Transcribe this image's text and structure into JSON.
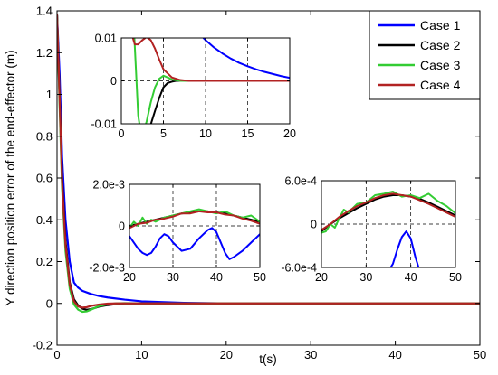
{
  "chart_data": [
    {
      "type": "line",
      "panel": "main",
      "title": "",
      "xlabel": "t(s)",
      "ylabel": "Y direction position error of the end-effector (m)",
      "xlim": [
        0,
        50
      ],
      "ylim": [
        -0.2,
        1.4
      ],
      "xticks": [
        0,
        10,
        20,
        30,
        40,
        50
      ],
      "xtick_labels": [
        "0",
        "10",
        "20",
        "30",
        "40",
        "50"
      ],
      "yticks": [
        -0.2,
        0,
        0.2,
        0.4,
        0.6,
        0.8,
        1.0,
        1.2,
        1.4
      ],
      "ytick_labels": [
        "-0.2",
        "0",
        "0.2",
        "0.4",
        "0.6",
        "0.8",
        "1",
        "1.2",
        "1.4"
      ],
      "grid": false,
      "legend": "top-right",
      "series": [
        {
          "name": "Case 1",
          "color": "#0000ff",
          "x": [
            0,
            0.3,
            0.6,
            1.0,
            1.5,
            2.0,
            2.5,
            3,
            4,
            5,
            6,
            8,
            10,
            15,
            20,
            30,
            40,
            50
          ],
          "y": [
            1.38,
            1.1,
            0.7,
            0.4,
            0.2,
            0.1,
            0.075,
            0.06,
            0.045,
            0.035,
            0.028,
            0.018,
            0.01,
            0.003,
            0.0,
            -0.001,
            0.0,
            0.0
          ]
        },
        {
          "name": "Case 2",
          "color": "#000000",
          "x": [
            0,
            0.3,
            0.6,
            1.0,
            1.5,
            2.0,
            2.5,
            3,
            3.5,
            4,
            5,
            6,
            7,
            8,
            10,
            20,
            50
          ],
          "y": [
            1.38,
            1.0,
            0.6,
            0.3,
            0.1,
            0.02,
            -0.01,
            -0.025,
            -0.03,
            -0.028,
            -0.015,
            -0.008,
            -0.003,
            0.0,
            0.0,
            0.0,
            0.0
          ]
        },
        {
          "name": "Case 3",
          "color": "#33cc33",
          "x": [
            0,
            0.3,
            0.6,
            1.0,
            1.5,
            2.0,
            2.5,
            3,
            3.5,
            4,
            5,
            6,
            7,
            8,
            10,
            20,
            50
          ],
          "y": [
            1.38,
            0.95,
            0.55,
            0.25,
            0.07,
            -0.005,
            -0.03,
            -0.04,
            -0.038,
            -0.03,
            -0.012,
            -0.004,
            0.0,
            0.001,
            0.0,
            0.0,
            0.0
          ]
        },
        {
          "name": "Case 4",
          "color": "#b22222",
          "x": [
            0,
            0.3,
            0.6,
            1.0,
            1.5,
            2.0,
            2.5,
            3,
            3.5,
            4,
            5,
            6,
            7,
            8,
            10,
            20,
            50
          ],
          "y": [
            1.38,
            0.98,
            0.58,
            0.28,
            0.09,
            0.01,
            -0.015,
            -0.02,
            -0.018,
            -0.012,
            -0.005,
            -0.001,
            0.0,
            0.0,
            0.0,
            0.0,
            0.0
          ]
        }
      ]
    },
    {
      "type": "line",
      "panel": "inset-top-left",
      "xlim": [
        0,
        20
      ],
      "ylim": [
        -0.01,
        0.01
      ],
      "xticks": [
        0,
        5,
        10,
        15,
        20
      ],
      "xtick_labels": [
        "0",
        "5",
        "10",
        "15",
        "20"
      ],
      "yticks": [
        -0.01,
        0,
        0.01
      ],
      "ytick_labels": [
        "-0.01",
        "0",
        "0.01"
      ],
      "grid": true,
      "series": [
        {
          "name": "Case 1",
          "color": "#0000ff",
          "x": [
            9,
            10,
            11,
            12,
            13,
            14,
            15,
            16,
            17,
            18,
            19,
            20
          ],
          "y": [
            0.0115,
            0.0095,
            0.0078,
            0.0064,
            0.0052,
            0.0042,
            0.0034,
            0.0027,
            0.0021,
            0.0016,
            0.0011,
            0.0007
          ]
        },
        {
          "name": "Case 2",
          "color": "#000000",
          "x": [
            3.0,
            3.3,
            3.6,
            4.0,
            4.5,
            5.0,
            5.5,
            6.0,
            6.5,
            7.0,
            8,
            10,
            15,
            20
          ],
          "y": [
            -0.012,
            -0.0115,
            -0.0095,
            -0.007,
            -0.004,
            -0.0015,
            -0.0005,
            -0.0002,
            0.0,
            0.0,
            0.0,
            0.0,
            0.0,
            0.0
          ]
        },
        {
          "name": "Case 3",
          "color": "#33cc33",
          "x": [
            1.5,
            1.8,
            2.0,
            2.3,
            2.6,
            3.0,
            3.5,
            4.0,
            4.5,
            5.0,
            5.5,
            6.0,
            7,
            8,
            10,
            15,
            20
          ],
          "y": [
            0.012,
            0.0,
            -0.008,
            -0.012,
            -0.012,
            -0.0095,
            -0.005,
            -0.0015,
            0.0005,
            0.0012,
            0.0008,
            0.0003,
            0.0,
            0.0,
            0.0,
            0.0,
            0.0
          ]
        },
        {
          "name": "Case 4",
          "color": "#b22222",
          "x": [
            1.0,
            1.3,
            1.6,
            2.0,
            2.5,
            3.0,
            3.5,
            4.0,
            4.5,
            5.0,
            6.0,
            7.0,
            8,
            10,
            15,
            20
          ],
          "y": [
            0.0115,
            0.0105,
            0.0085,
            0.0085,
            0.0095,
            0.0102,
            0.0095,
            0.0075,
            0.005,
            0.0027,
            0.0008,
            0.0002,
            0.0,
            0.0,
            0.0,
            0.0
          ]
        }
      ]
    },
    {
      "type": "line",
      "panel": "inset-middle",
      "xlim": [
        20,
        50
      ],
      "ylim": [
        -0.002,
        0.002
      ],
      "xticks": [
        20,
        30,
        40,
        50
      ],
      "xtick_labels": [
        "20",
        "30",
        "40",
        "50"
      ],
      "yticks": [
        -0.002,
        0,
        0.002
      ],
      "ytick_labels": [
        "-2.0e-3",
        "0",
        "2.0e-3"
      ],
      "grid": true,
      "series": [
        {
          "name": "Case 1",
          "color": "#0000ff",
          "x": [
            20,
            21,
            22,
            23,
            24,
            25,
            26,
            27,
            28,
            29,
            30,
            32,
            34,
            36,
            38,
            39,
            40,
            41,
            42,
            43,
            44,
            46,
            48,
            50
          ],
          "y": [
            -0.0005,
            -0.0008,
            -0.0011,
            -0.0013,
            -0.0014,
            -0.0013,
            -0.001,
            -0.0006,
            -0.0004,
            -0.0005,
            -0.0008,
            -0.0012,
            -0.0011,
            -0.0006,
            -0.0002,
            -0.0001,
            -0.0003,
            -0.0008,
            -0.0013,
            -0.0016,
            -0.0015,
            -0.0012,
            -0.0008,
            -0.0004
          ]
        },
        {
          "name": "Case 2",
          "color": "#000000",
          "x": [
            20,
            22,
            24,
            26,
            28,
            30,
            32,
            34,
            36,
            38,
            40,
            42,
            44,
            46,
            48,
            50
          ],
          "y": [
            0.0,
            0.0001,
            0.0002,
            0.0003,
            0.0004,
            0.0005,
            0.0006,
            0.00065,
            0.0007,
            0.0007,
            0.00065,
            0.0006,
            0.0005,
            0.0004,
            0.0003,
            0.0002
          ]
        },
        {
          "name": "Case 3",
          "color": "#33cc33",
          "x": [
            20,
            21,
            22,
            23,
            24,
            25,
            26,
            28,
            30,
            32,
            34,
            36,
            38,
            40,
            42,
            44,
            46,
            48,
            50
          ],
          "y": [
            -0.0001,
            0.0002,
            0.0,
            0.0004,
            0.0001,
            0.0003,
            0.0002,
            0.0004,
            0.0005,
            0.0006,
            0.0007,
            0.0008,
            0.0007,
            0.0006,
            0.0007,
            0.0005,
            0.0004,
            0.0005,
            0.0002
          ]
        },
        {
          "name": "Case 4",
          "color": "#b22222",
          "x": [
            20,
            22,
            24,
            26,
            28,
            30,
            32,
            34,
            36,
            38,
            40,
            42,
            44,
            46,
            48,
            50
          ],
          "y": [
            -0.0001,
            0.0001,
            0.00015,
            0.0003,
            0.00035,
            0.00045,
            0.0006,
            0.0006,
            0.0007,
            0.00065,
            0.00065,
            0.00055,
            0.0005,
            0.00035,
            0.00025,
            0.0001
          ]
        }
      ]
    },
    {
      "type": "line",
      "panel": "inset-right",
      "xlim": [
        20,
        50
      ],
      "ylim": [
        -0.0006,
        0.0006
      ],
      "xticks": [
        20,
        30,
        40,
        50
      ],
      "xtick_labels": [
        "20",
        "30",
        "40",
        "50"
      ],
      "yticks": [
        -0.0006,
        0,
        0.0006
      ],
      "ytick_labels": [
        "-6.0e-4",
        "0",
        "6.0e-4"
      ],
      "grid": true,
      "series": [
        {
          "name": "Case 1",
          "color": "#0000ff",
          "x": [
            35,
            36,
            37,
            38,
            39,
            40,
            41,
            42
          ],
          "y": [
            -0.00065,
            -0.00055,
            -0.00035,
            -0.00018,
            -0.0001,
            -0.0002,
            -0.00045,
            -0.00065
          ]
        },
        {
          "name": "Case 2",
          "color": "#000000",
          "x": [
            20,
            22,
            24,
            26,
            28,
            30,
            32,
            34,
            36,
            38,
            40,
            42,
            44,
            46,
            48,
            50
          ],
          "y": [
            -0.0001,
            0.0,
            8e-05,
            0.00015,
            0.00022,
            0.00028,
            0.00034,
            0.00038,
            0.0004,
            0.0004,
            0.00038,
            0.00035,
            0.0003,
            0.00024,
            0.00018,
            0.00012
          ]
        },
        {
          "name": "Case 3",
          "color": "#33cc33",
          "x": [
            20,
            21,
            22,
            23,
            24,
            25,
            26,
            28,
            30,
            32,
            34,
            36,
            38,
            40,
            42,
            44,
            46,
            48,
            50
          ],
          "y": [
            -0.00012,
            -0.0001,
            0.0,
            -5e-05,
            8e-05,
            0.0002,
            0.00016,
            0.00028,
            0.0003,
            0.0004,
            0.00042,
            0.00045,
            0.00038,
            0.0004,
            0.00036,
            0.00042,
            0.00032,
            0.00025,
            0.00015
          ]
        },
        {
          "name": "Case 4",
          "color": "#b22222",
          "x": [
            20,
            22,
            24,
            26,
            28,
            30,
            32,
            34,
            36,
            38,
            40,
            42,
            44,
            46,
            48,
            50
          ],
          "y": [
            -8e-05,
            0.0,
            0.0001,
            0.00018,
            0.00025,
            0.0003,
            0.00036,
            0.0004,
            0.00042,
            0.0004,
            0.00038,
            0.00033,
            0.00028,
            0.00022,
            0.00016,
            0.0001
          ]
        }
      ]
    }
  ],
  "legend": {
    "items": [
      {
        "label": "Case 1",
        "color": "#0000ff"
      },
      {
        "label": "Case 2",
        "color": "#000000"
      },
      {
        "label": "Case 3",
        "color": "#33cc33"
      },
      {
        "label": "Case 4",
        "color": "#b22222"
      }
    ]
  }
}
